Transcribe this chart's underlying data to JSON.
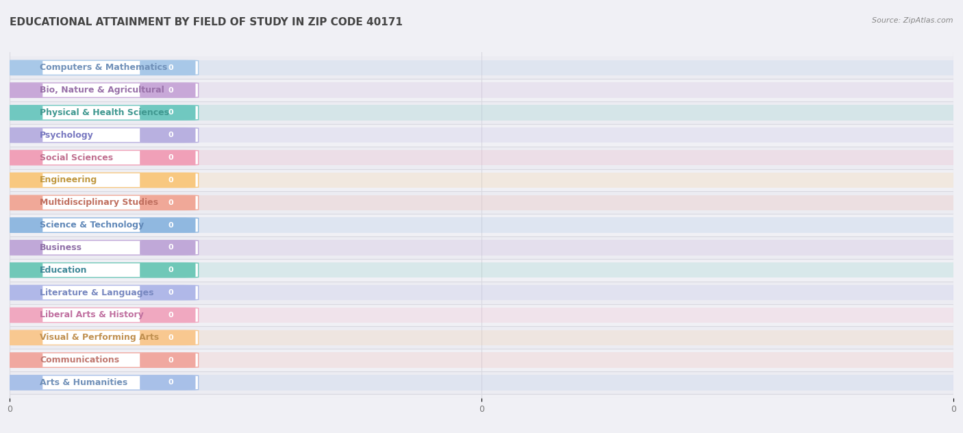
{
  "title": "EDUCATIONAL ATTAINMENT BY FIELD OF STUDY IN ZIP CODE 40171",
  "source": "Source: ZipAtlas.com",
  "categories": [
    "Computers & Mathematics",
    "Bio, Nature & Agricultural",
    "Physical & Health Sciences",
    "Psychology",
    "Social Sciences",
    "Engineering",
    "Multidisciplinary Studies",
    "Science & Technology",
    "Business",
    "Education",
    "Literature & Languages",
    "Liberal Arts & History",
    "Visual & Performing Arts",
    "Communications",
    "Arts & Humanities"
  ],
  "values": [
    0,
    0,
    0,
    0,
    0,
    0,
    0,
    0,
    0,
    0,
    0,
    0,
    0,
    0,
    0
  ],
  "bar_colors": [
    "#a8c8e8",
    "#c8a8d8",
    "#70c8c0",
    "#b8b0e0",
    "#f0a0b8",
    "#f8c880",
    "#f0a898",
    "#90b8e0",
    "#c0a8d8",
    "#70c8b8",
    "#b0b8e8",
    "#f0a8c0",
    "#f8c890",
    "#f0a8a0",
    "#a8c0e8"
  ],
  "label_text_colors": [
    "#7090b8",
    "#9870a8",
    "#409890",
    "#7878c0",
    "#c07090",
    "#c09840",
    "#c07060",
    "#6088b8",
    "#9070a8",
    "#408898",
    "#7888c0",
    "#c070a0",
    "#c09050",
    "#c07870",
    "#7090b8"
  ],
  "background_color": "#f0f0f5",
  "plot_bg": "#f0f0f5",
  "title_fontsize": 11,
  "label_fontsize": 9,
  "bar_height": 0.68,
  "grid_color": "#d8d8e0"
}
